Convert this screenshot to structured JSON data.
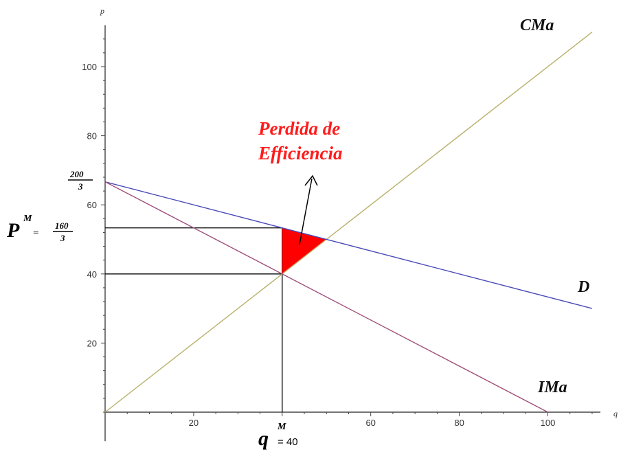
{
  "chart_data": {
    "type": "line",
    "xlabel": "q",
    "ylabel": "p",
    "xlim": [
      0,
      110
    ],
    "ylim": [
      -10,
      112
    ],
    "x_ticks": [
      20,
      40,
      60,
      80,
      100
    ],
    "y_ticks": [
      20,
      40,
      60,
      80,
      100
    ],
    "x_tick_labels": [
      "20",
      "",
      "60",
      "80",
      "100"
    ],
    "y_tick_labels": [
      "20",
      "40",
      "60",
      "80",
      "100"
    ],
    "grid": false,
    "series": [
      {
        "name": "CMa",
        "color": "#b8b06a",
        "x": [
          0,
          110
        ],
        "y": [
          0,
          110
        ]
      },
      {
        "name": "D",
        "color": "#4a4ab8",
        "x": [
          0,
          110
        ],
        "y": [
          66.67,
          30
        ]
      },
      {
        "name": "IMa",
        "color": "#a0507a",
        "x": [
          0,
          100
        ],
        "y": [
          66.67,
          0
        ]
      }
    ],
    "monopoly": {
      "q": 40,
      "p": 53.33,
      "mc": 40,
      "color": "#000000"
    },
    "deadweight_loss": {
      "vertices": [
        [
          40,
          53.33
        ],
        [
          40,
          40
        ],
        [
          50,
          50
        ]
      ],
      "color": "#ff0000"
    },
    "labels": {
      "axis_y_fraction_num": "200",
      "axis_y_fraction_den": "3",
      "price_letter": "P",
      "price_sup": "M",
      "price_eq": "=",
      "price_num": "160",
      "price_den": "3",
      "qty_letter": "q",
      "qty_sup": "M",
      "qty_eq": "= 40",
      "annotation_line1": "Perdida de",
      "annotation_line2": "Efficiencia"
    }
  }
}
